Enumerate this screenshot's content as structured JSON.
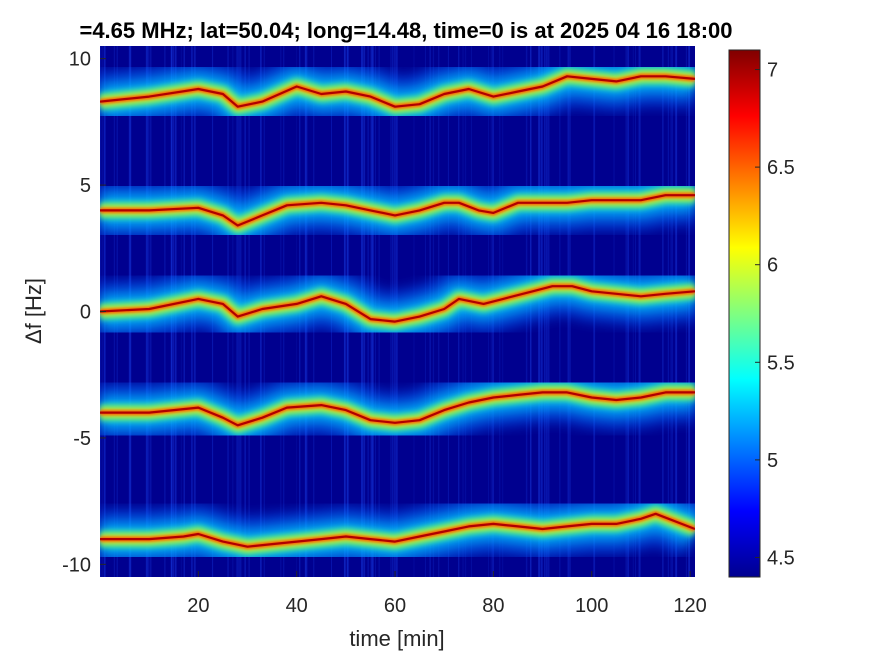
{
  "chart_data": {
    "type": "heatmap",
    "title": "=4.65 MHz;  lat=50.04; long=14.48, time=0 is at 2025 04 16 18:00",
    "xlabel": "time [min]",
    "ylabel": "Δf [Hz]",
    "xlim": [
      0,
      121
    ],
    "ylim": [
      -10.5,
      10.5
    ],
    "x_ticks": [
      20,
      40,
      60,
      80,
      100,
      120
    ],
    "y_ticks": [
      -10,
      -5,
      0,
      5,
      10
    ],
    "colorbar": {
      "colormap": "jet",
      "range": [
        4.4,
        7.1
      ],
      "ticks": [
        4.5,
        5,
        5.5,
        6,
        6.5,
        7
      ]
    },
    "grid": false,
    "series": [
      {
        "offset_hz": 8.5,
        "points": [
          [
            0,
            8.3
          ],
          [
            10,
            8.5
          ],
          [
            20,
            8.8
          ],
          [
            25,
            8.6
          ],
          [
            28,
            8.1
          ],
          [
            33,
            8.3
          ],
          [
            40,
            8.9
          ],
          [
            45,
            8.6
          ],
          [
            50,
            8.7
          ],
          [
            55,
            8.5
          ],
          [
            60,
            8.1
          ],
          [
            65,
            8.2
          ],
          [
            70,
            8.6
          ],
          [
            75,
            8.8
          ],
          [
            80,
            8.5
          ],
          [
            85,
            8.7
          ],
          [
            90,
            8.9
          ],
          [
            95,
            9.3
          ],
          [
            100,
            9.2
          ],
          [
            105,
            9.1
          ],
          [
            110,
            9.3
          ],
          [
            115,
            9.3
          ],
          [
            121,
            9.2
          ]
        ]
      },
      {
        "offset_hz": 4,
        "points": [
          [
            0,
            4.0
          ],
          [
            10,
            4.0
          ],
          [
            20,
            4.1
          ],
          [
            25,
            3.8
          ],
          [
            28,
            3.4
          ],
          [
            33,
            3.8
          ],
          [
            38,
            4.2
          ],
          [
            45,
            4.3
          ],
          [
            50,
            4.2
          ],
          [
            55,
            4.0
          ],
          [
            60,
            3.8
          ],
          [
            65,
            4.0
          ],
          [
            70,
            4.3
          ],
          [
            73,
            4.3
          ],
          [
            77,
            4.0
          ],
          [
            80,
            3.9
          ],
          [
            85,
            4.3
          ],
          [
            90,
            4.3
          ],
          [
            95,
            4.3
          ],
          [
            100,
            4.4
          ],
          [
            105,
            4.4
          ],
          [
            110,
            4.4
          ],
          [
            115,
            4.6
          ],
          [
            121,
            4.6
          ]
        ]
      },
      {
        "offset_hz": 0,
        "points": [
          [
            0,
            0.0
          ],
          [
            10,
            0.1
          ],
          [
            20,
            0.5
          ],
          [
            25,
            0.3
          ],
          [
            28,
            -0.2
          ],
          [
            33,
            0.1
          ],
          [
            40,
            0.3
          ],
          [
            45,
            0.6
          ],
          [
            50,
            0.3
          ],
          [
            55,
            -0.3
          ],
          [
            60,
            -0.4
          ],
          [
            65,
            -0.2
          ],
          [
            70,
            0.1
          ],
          [
            73,
            0.5
          ],
          [
            78,
            0.3
          ],
          [
            82,
            0.5
          ],
          [
            88,
            0.8
          ],
          [
            92,
            1.0
          ],
          [
            96,
            1.0
          ],
          [
            100,
            0.8
          ],
          [
            105,
            0.7
          ],
          [
            110,
            0.6
          ],
          [
            115,
            0.7
          ],
          [
            121,
            0.8
          ]
        ]
      },
      {
        "offset_hz": -4,
        "points": [
          [
            0,
            -4.0
          ],
          [
            10,
            -4.0
          ],
          [
            20,
            -3.8
          ],
          [
            25,
            -4.2
          ],
          [
            28,
            -4.5
          ],
          [
            33,
            -4.2
          ],
          [
            38,
            -3.8
          ],
          [
            45,
            -3.7
          ],
          [
            50,
            -3.9
          ],
          [
            55,
            -4.3
          ],
          [
            60,
            -4.4
          ],
          [
            65,
            -4.3
          ],
          [
            70,
            -3.9
          ],
          [
            75,
            -3.6
          ],
          [
            80,
            -3.4
          ],
          [
            85,
            -3.3
          ],
          [
            90,
            -3.2
          ],
          [
            95,
            -3.2
          ],
          [
            100,
            -3.4
          ],
          [
            105,
            -3.5
          ],
          [
            110,
            -3.4
          ],
          [
            115,
            -3.2
          ],
          [
            121,
            -3.2
          ]
        ]
      },
      {
        "offset_hz": -9,
        "points": [
          [
            0,
            -9.0
          ],
          [
            10,
            -9.0
          ],
          [
            17,
            -8.9
          ],
          [
            20,
            -8.8
          ],
          [
            25,
            -9.1
          ],
          [
            30,
            -9.3
          ],
          [
            35,
            -9.2
          ],
          [
            40,
            -9.1
          ],
          [
            45,
            -9.0
          ],
          [
            50,
            -8.9
          ],
          [
            55,
            -9.0
          ],
          [
            60,
            -9.1
          ],
          [
            65,
            -8.9
          ],
          [
            70,
            -8.7
          ],
          [
            75,
            -8.5
          ],
          [
            80,
            -8.4
          ],
          [
            85,
            -8.5
          ],
          [
            90,
            -8.6
          ],
          [
            95,
            -8.5
          ],
          [
            100,
            -8.4
          ],
          [
            105,
            -8.4
          ],
          [
            110,
            -8.2
          ],
          [
            113,
            -8.0
          ],
          [
            121,
            -8.6
          ]
        ]
      }
    ],
    "colors": {
      "background": "#00008F",
      "mid": "#00C0FF",
      "high": "#FFFF00",
      "peak": "#C00000"
    }
  }
}
